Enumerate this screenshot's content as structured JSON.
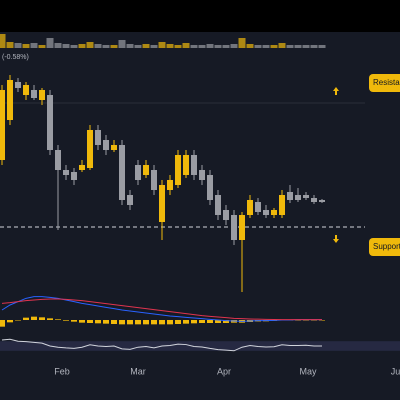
{
  "chart_data": {
    "type": "candlestick",
    "change_label": "(-0.58%)",
    "categories": [
      null,
      null,
      null,
      null,
      null,
      null,
      null,
      null,
      null,
      null,
      null,
      null,
      null,
      null,
      null,
      null,
      null,
      null,
      null,
      null,
      null,
      null,
      null,
      null,
      null,
      null,
      null,
      null,
      null,
      null,
      null,
      null,
      null,
      null,
      null,
      null,
      null,
      null,
      null,
      null,
      null
    ],
    "open": [
      140,
      180,
      218,
      205,
      210,
      200,
      205,
      150,
      130,
      128,
      130,
      132,
      170,
      160,
      150,
      155,
      105,
      135,
      125,
      130,
      78,
      110,
      115,
      125,
      145,
      130,
      125,
      105,
      90,
      85,
      60,
      85,
      98,
      90,
      85,
      85,
      108,
      105,
      105,
      102,
      100
    ],
    "close": [
      210,
      220,
      212,
      215,
      202,
      210,
      150,
      130,
      125,
      120,
      135,
      170,
      155,
      150,
      155,
      100,
      95,
      120,
      135,
      110,
      115,
      120,
      145,
      145,
      125,
      120,
      100,
      85,
      80,
      60,
      85,
      100,
      88,
      85,
      90,
      105,
      100,
      100,
      102,
      98,
      98
    ],
    "high": [
      215,
      225,
      222,
      218,
      215,
      212,
      210,
      155,
      135,
      132,
      140,
      175,
      175,
      165,
      160,
      160,
      110,
      140,
      140,
      135,
      120,
      125,
      150,
      150,
      150,
      135,
      130,
      110,
      95,
      90,
      88,
      105,
      102,
      95,
      92,
      110,
      115,
      112,
      108,
      105,
      101
    ],
    "low": [
      135,
      175,
      208,
      200,
      200,
      195,
      145,
      70,
      120,
      115,
      128,
      130,
      150,
      145,
      148,
      95,
      90,
      115,
      122,
      105,
      60,
      105,
      112,
      122,
      120,
      115,
      95,
      80,
      75,
      55,
      8,
      82,
      85,
      82,
      82,
      82,
      97,
      98,
      100,
      96,
      97
    ],
    "up_color": "#f0b90b",
    "down_color": "#9a9ca3",
    "ylim": [
      0,
      240
    ],
    "xticks": [
      {
        "value": 7.5,
        "label": "Feb"
      },
      {
        "value": 17,
        "label": "Mar"
      },
      {
        "value": 27.75,
        "label": "Apr"
      },
      {
        "value": 38.25,
        "label": "May"
      },
      {
        "value": 49.5,
        "label": "Jun"
      }
    ],
    "levels": [
      {
        "name": "Resistance",
        "value": 197,
        "direction": "up"
      },
      {
        "name": "Support",
        "value": 73,
        "direction": "down"
      }
    ],
    "volume": {
      "values": [
        14,
        6,
        5,
        4,
        5,
        3,
        10,
        5,
        4,
        3,
        4,
        6,
        4,
        3,
        3,
        8,
        4,
        3,
        4,
        3,
        6,
        4,
        3,
        5,
        3,
        3,
        4,
        3,
        3,
        4,
        10,
        4,
        3,
        3,
        3,
        5,
        3,
        3,
        3,
        3,
        3
      ],
      "ylim": [
        0,
        15
      ]
    },
    "macd": {
      "ylim": [
        -3,
        9
      ],
      "series": [
        {
          "color": "#2962ff",
          "values": [
            3,
            4.5,
            5.5,
            6.5,
            7,
            7,
            6.8,
            6.5,
            6,
            5.5,
            5,
            4.6,
            4.2,
            3.8,
            3.4,
            3,
            2.7,
            2.4,
            2.1,
            1.8,
            1.5,
            1.2,
            1,
            0.8,
            0.6,
            0.4,
            0.2,
            0,
            -0.2,
            -0.3,
            -0.4,
            -0.3,
            -0.2,
            -0.2,
            -0.1,
            0,
            0,
            0.1,
            0.1,
            0.1,
            0.1
          ]
        },
        {
          "color": "#e0344f",
          "values": [
            5,
            5.2,
            5.5,
            5.8,
            6,
            6.2,
            6.3,
            6.3,
            6.2,
            6,
            5.8,
            5.5,
            5.2,
            4.9,
            4.6,
            4.3,
            4,
            3.7,
            3.4,
            3.1,
            2.8,
            2.5,
            2.2,
            1.9,
            1.6,
            1.3,
            1.1,
            0.9,
            0.7,
            0.5,
            0.4,
            0.3,
            0.25,
            0.2,
            0.15,
            0.1,
            0.1,
            0.1,
            0.1,
            0.1,
            0.1
          ]
        }
      ],
      "histogram": {
        "color": "#f0b90b",
        "values": [
          -2,
          -0.7,
          0,
          0.7,
          1,
          0.8,
          0.5,
          0.2,
          -0.2,
          -0.5,
          -0.8,
          -0.9,
          -1,
          -1.1,
          -1.2,
          -1.3,
          -1.3,
          -1.3,
          -1.3,
          -1.3,
          -1.3,
          -1.3,
          -1.2,
          -1.1,
          -1,
          -0.9,
          -0.9,
          -0.9,
          -0.9,
          -0.8,
          -0.8,
          -0.6,
          -0.45,
          -0.4,
          -0.25,
          -0.1,
          -0.1,
          0,
          0,
          0,
          0
        ]
      }
    },
    "rsi": {
      "color": "#d1d4dc",
      "ylim": [
        0,
        100
      ],
      "band": [
        30,
        70
      ],
      "values": [
        75,
        78,
        70,
        68,
        65,
        62,
        50,
        45,
        42,
        40,
        45,
        55,
        50,
        48,
        50,
        38,
        36,
        45,
        48,
        42,
        50,
        52,
        58,
        56,
        48,
        46,
        40,
        35,
        33,
        30,
        45,
        52,
        48,
        46,
        47,
        55,
        52,
        52,
        53,
        50,
        50
      ]
    }
  }
}
